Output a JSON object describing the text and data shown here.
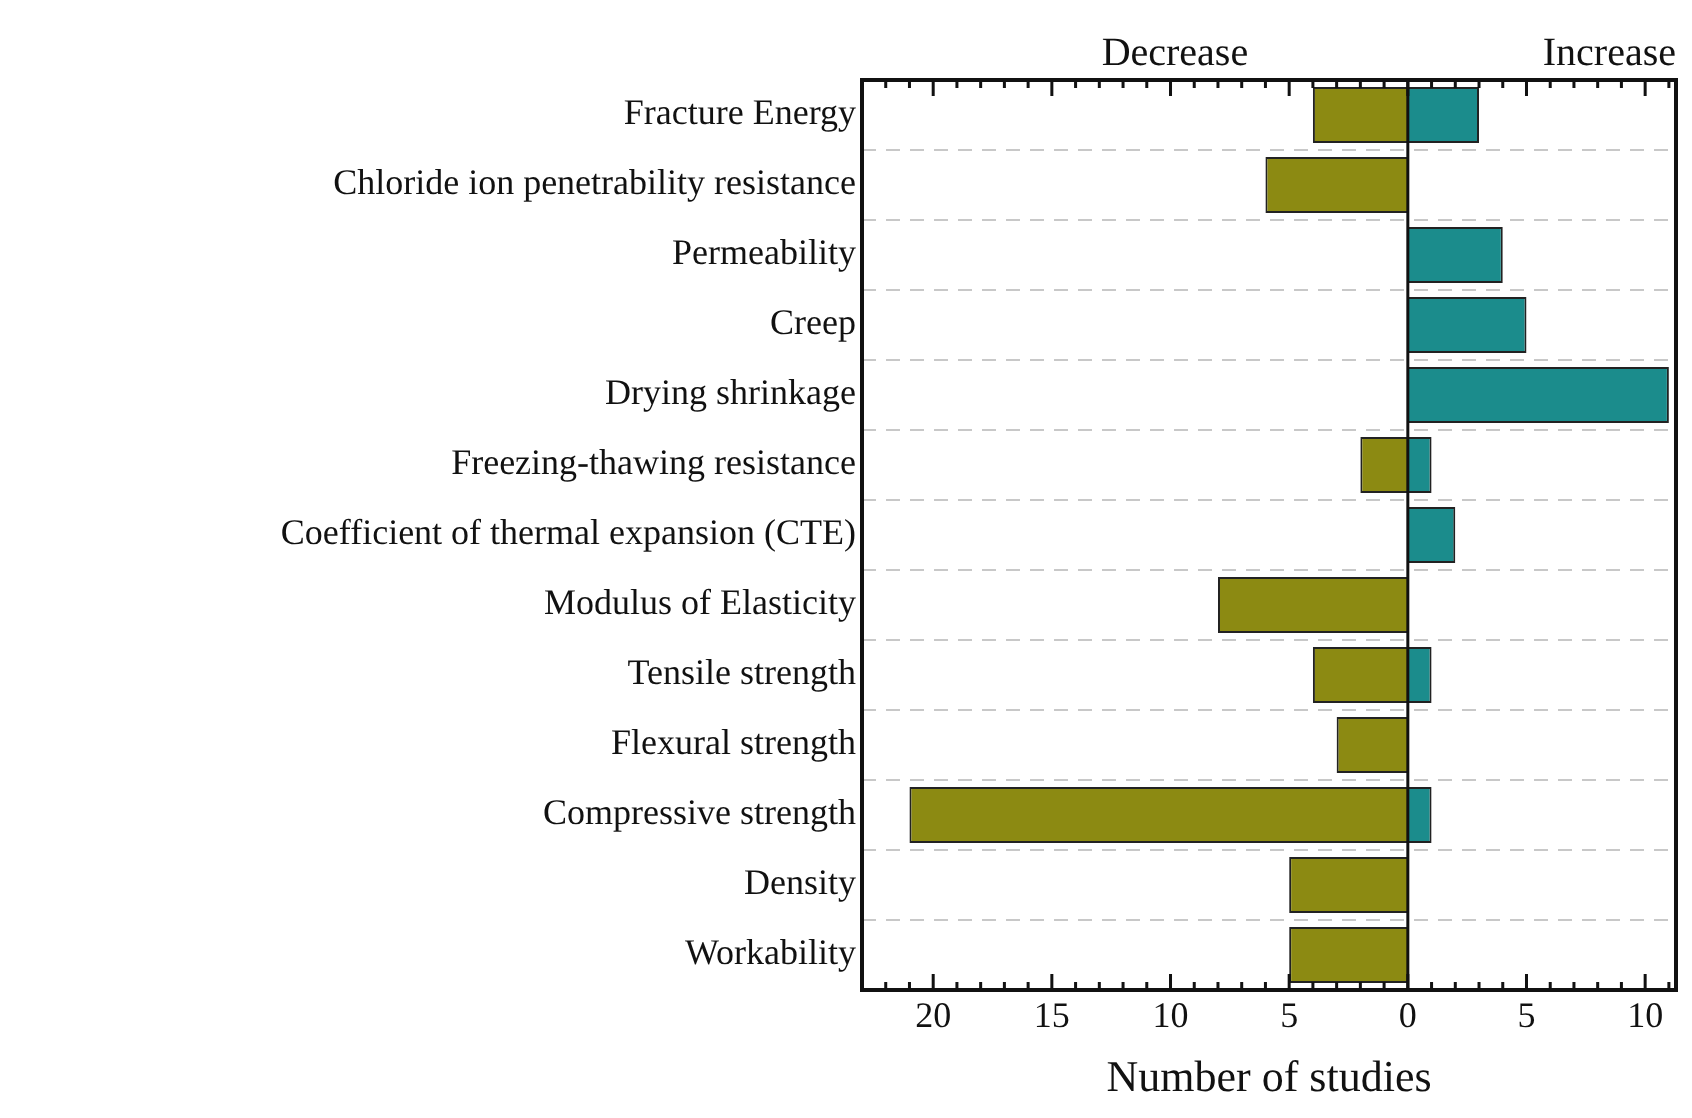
{
  "chart_data": {
    "type": "bar",
    "orientation": "horizontal",
    "stacked": true,
    "categories": [
      "Fracture Energy",
      "Chloride ion penetrability resistance",
      "Permeability",
      "Creep",
      "Drying shrinkage",
      "Freezing-thawing resistance",
      "Coefficient of thermal expansion (CTE)",
      "Modulus of Elasticity",
      "Tensile strength",
      "Flexural strength",
      "Compressive strength",
      "Density",
      "Workability"
    ],
    "series": [
      {
        "color": "#8c8a12",
        "values": [
          -4,
          -6,
          null,
          null,
          null,
          -2,
          null,
          -8,
          -4,
          -3,
          -21,
          -5,
          -5
        ]
      },
      {
        "color": "#1b8c8c",
        "values": [
          3,
          null,
          4,
          5,
          11,
          1,
          2,
          null,
          1,
          null,
          1,
          null,
          null
        ]
      }
    ],
    "xlim": [
      -23,
      11.3
    ],
    "xticks": [
      {
        "value": -20,
        "label": "20"
      },
      {
        "value": -15,
        "label": "15"
      },
      {
        "value": -10,
        "label": "10"
      },
      {
        "value": -5,
        "label": "5"
      },
      0,
      5,
      10
    ],
    "xlabel": "Number of studies",
    "annotations": [
      "Decrease",
      "Increase"
    ],
    "grid": "y",
    "legend": false
  }
}
